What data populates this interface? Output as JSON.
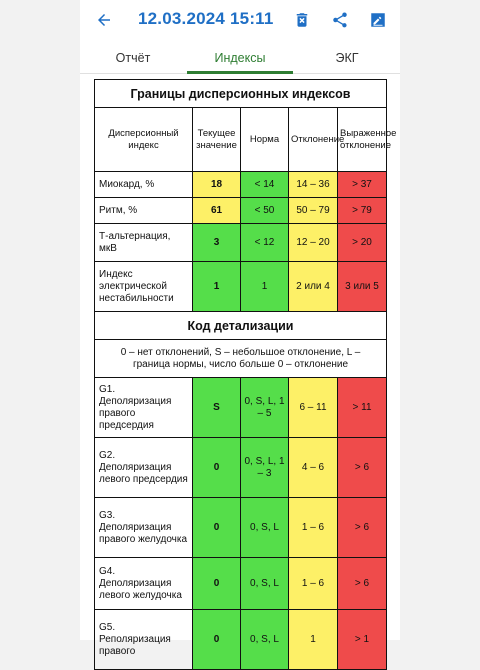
{
  "header": {
    "title": "12.03.2024 15:11"
  },
  "colors": {
    "accent": "#1f6fc5",
    "tab_active": "#2e7d32",
    "normal": "#55de4a",
    "deviation": "#fdf067",
    "marked": "#ef4b4b"
  },
  "tabs": [
    {
      "label": "Отчёт",
      "active": false
    },
    {
      "label": "Индексы",
      "active": true
    },
    {
      "label": "ЭКГ",
      "active": false
    }
  ],
  "indices": {
    "title": "Границы дисперсионных индексов",
    "headers": [
      "Дисперсионный индекс",
      "Текущее значение",
      "Норма",
      "Отклонение",
      "Выраженное отклонение"
    ],
    "rows": [
      {
        "name": "Миокард, %",
        "value": "18",
        "norm": "< 14",
        "dev": "14 – 36",
        "strong": "> 37"
      },
      {
        "name": "Ритм, %",
        "value": "61",
        "norm": "< 50",
        "dev": "50 – 79",
        "strong": "> 79"
      },
      {
        "name": "Т-альтернация, мкВ",
        "value": "3",
        "norm": "< 12",
        "dev": "12 – 20",
        "strong": "> 20"
      },
      {
        "name": "Индекс электрической нестабильности",
        "value": "1",
        "norm": "1",
        "dev": "2 или 4",
        "strong": "3 или 5"
      }
    ]
  },
  "detail": {
    "title": "Код детализации",
    "note": "0 – нет отклонений, S – небольшое отклонение, L – граница нормы, число больше 0 – отклонение",
    "rows": [
      {
        "name": "G1. Деполяризация правого предсердия",
        "value": "S",
        "norm": "0, S, L, 1 – 5",
        "dev": "6 – 11",
        "strong": "> 11"
      },
      {
        "name": "G2. Деполяризация левого предсердия",
        "value": "0",
        "norm": "0, S, L, 1 – 3",
        "dev": "4 – 6",
        "strong": "> 6"
      },
      {
        "name": "G3. Деполяризация правого желудочка",
        "value": "0",
        "norm": "0, S, L",
        "dev": "1 – 6",
        "strong": "> 6"
      },
      {
        "name": "G4. Деполяризация левого желудочка",
        "value": "0",
        "norm": "0, S, L",
        "dev": "1 – 6",
        "strong": "> 6"
      },
      {
        "name": "G5. Реполяризация правого",
        "value": "0",
        "norm": "0, S, L",
        "dev": "1",
        "strong": "> 1"
      }
    ]
  }
}
